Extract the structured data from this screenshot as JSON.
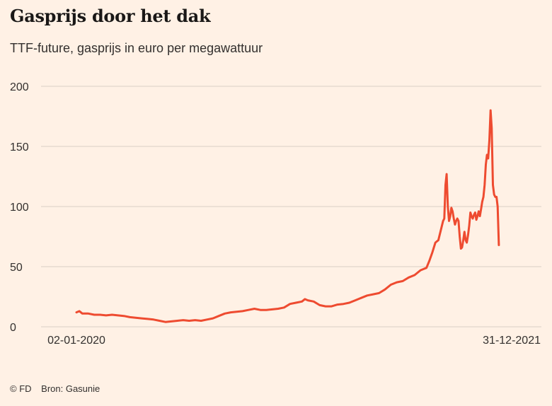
{
  "header": {
    "title": "Gasprijs door het dak",
    "subtitle": "TTF-future, gasprijs in euro per megawattuur"
  },
  "footer": {
    "copyright": "© FD",
    "source": "Bron: Gasunie"
  },
  "colors": {
    "background": "#fff1e5",
    "gridline": "#e0d6cc",
    "series": "#ee4b30",
    "text": "#33302e"
  },
  "chart_data": {
    "type": "line",
    "title": "Gasprijs door het dak",
    "subtitle": "TTF-future, gasprijs in euro per megawattuur",
    "xlabel": "",
    "ylabel": "",
    "ylim": [
      0,
      200
    ],
    "yticks": [
      0,
      50,
      100,
      150,
      200
    ],
    "xlim": [
      0,
      730
    ],
    "xticks": [
      {
        "day": 0,
        "label": "02-01-2020"
      },
      {
        "day": 729,
        "label": "31-12-2021"
      }
    ],
    "grid": true,
    "legend": "none",
    "series": [
      {
        "name": "TTF-future",
        "x_unit": "days since 02-01-2020",
        "points": [
          [
            0,
            12
          ],
          [
            5,
            13
          ],
          [
            10,
            11
          ],
          [
            20,
            11
          ],
          [
            30,
            10
          ],
          [
            40,
            10
          ],
          [
            50,
            9.5
          ],
          [
            60,
            10
          ],
          [
            70,
            9.5
          ],
          [
            80,
            9
          ],
          [
            90,
            8
          ],
          [
            100,
            7.5
          ],
          [
            110,
            7
          ],
          [
            120,
            6.5
          ],
          [
            130,
            6
          ],
          [
            140,
            5
          ],
          [
            150,
            4
          ],
          [
            160,
            4.5
          ],
          [
            170,
            5
          ],
          [
            180,
            5.5
          ],
          [
            190,
            5
          ],
          [
            200,
            5.5
          ],
          [
            210,
            5
          ],
          [
            220,
            6
          ],
          [
            230,
            7
          ],
          [
            240,
            9
          ],
          [
            250,
            11
          ],
          [
            260,
            12
          ],
          [
            270,
            12.5
          ],
          [
            280,
            13
          ],
          [
            290,
            14
          ],
          [
            300,
            15
          ],
          [
            310,
            14
          ],
          [
            320,
            14
          ],
          [
            330,
            14.5
          ],
          [
            340,
            15
          ],
          [
            350,
            16
          ],
          [
            360,
            19
          ],
          [
            370,
            20
          ],
          [
            380,
            21
          ],
          [
            385,
            23
          ],
          [
            390,
            22
          ],
          [
            400,
            21
          ],
          [
            410,
            18
          ],
          [
            420,
            17
          ],
          [
            430,
            17
          ],
          [
            440,
            18.5
          ],
          [
            450,
            19
          ],
          [
            460,
            20
          ],
          [
            470,
            22
          ],
          [
            480,
            24
          ],
          [
            490,
            26
          ],
          [
            500,
            27
          ],
          [
            510,
            28
          ],
          [
            520,
            31
          ],
          [
            530,
            35
          ],
          [
            540,
            37
          ],
          [
            550,
            38
          ],
          [
            560,
            41
          ],
          [
            570,
            43
          ],
          [
            580,
            47
          ],
          [
            585,
            48
          ],
          [
            590,
            49
          ],
          [
            595,
            55
          ],
          [
            600,
            62
          ],
          [
            605,
            70
          ],
          [
            610,
            72
          ],
          [
            615,
            82
          ],
          [
            618,
            88
          ],
          [
            620,
            90
          ],
          [
            622,
            118
          ],
          [
            624,
            127
          ],
          [
            626,
            100
          ],
          [
            628,
            88
          ],
          [
            630,
            92
          ],
          [
            632,
            99
          ],
          [
            634,
            96
          ],
          [
            636,
            90
          ],
          [
            638,
            85
          ],
          [
            640,
            88
          ],
          [
            642,
            90
          ],
          [
            644,
            88
          ],
          [
            646,
            75
          ],
          [
            648,
            65
          ],
          [
            650,
            66
          ],
          [
            652,
            72
          ],
          [
            654,
            79
          ],
          [
            656,
            72
          ],
          [
            658,
            70
          ],
          [
            660,
            76
          ],
          [
            662,
            84
          ],
          [
            664,
            95
          ],
          [
            666,
            92
          ],
          [
            668,
            90
          ],
          [
            670,
            93
          ],
          [
            672,
            95
          ],
          [
            674,
            89
          ],
          [
            676,
            92
          ],
          [
            678,
            96
          ],
          [
            680,
            92
          ],
          [
            682,
            98
          ],
          [
            684,
            104
          ],
          [
            686,
            108
          ],
          [
            688,
            118
          ],
          [
            690,
            135
          ],
          [
            692,
            143
          ],
          [
            694,
            140
          ],
          [
            696,
            155
          ],
          [
            698,
            180
          ],
          [
            700,
            165
          ],
          [
            702,
            118
          ],
          [
            704,
            110
          ],
          [
            706,
            108
          ],
          [
            708,
            108
          ],
          [
            710,
            100
          ],
          [
            712,
            68
          ]
        ]
      }
    ]
  }
}
